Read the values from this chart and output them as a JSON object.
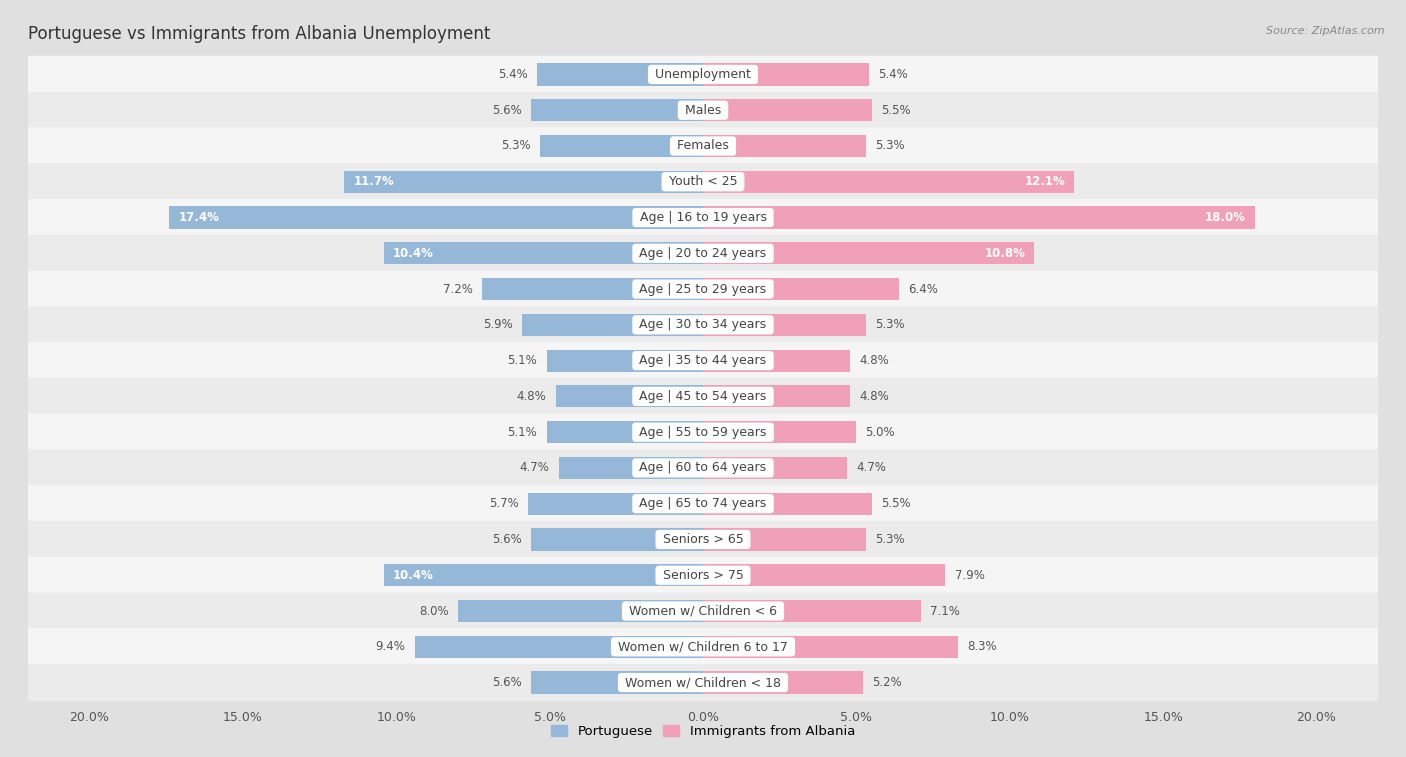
{
  "title": "Portuguese vs Immigrants from Albania Unemployment",
  "source": "Source: ZipAtlas.com",
  "categories": [
    "Unemployment",
    "Males",
    "Females",
    "Youth < 25",
    "Age | 16 to 19 years",
    "Age | 20 to 24 years",
    "Age | 25 to 29 years",
    "Age | 30 to 34 years",
    "Age | 35 to 44 years",
    "Age | 45 to 54 years",
    "Age | 55 to 59 years",
    "Age | 60 to 64 years",
    "Age | 65 to 74 years",
    "Seniors > 65",
    "Seniors > 75",
    "Women w/ Children < 6",
    "Women w/ Children 6 to 17",
    "Women w/ Children < 18"
  ],
  "portuguese": [
    5.4,
    5.6,
    5.3,
    11.7,
    17.4,
    10.4,
    7.2,
    5.9,
    5.1,
    4.8,
    5.1,
    4.7,
    5.7,
    5.6,
    10.4,
    8.0,
    9.4,
    5.6
  ],
  "albania": [
    5.4,
    5.5,
    5.3,
    12.1,
    18.0,
    10.8,
    6.4,
    5.3,
    4.8,
    4.8,
    5.0,
    4.7,
    5.5,
    5.3,
    7.9,
    7.1,
    8.3,
    5.2
  ],
  "portuguese_color": "#95b8d9",
  "albania_color": "#f0a0b8",
  "row_light": "#e8e8e8",
  "row_dark": "#d8d8d8",
  "background_color": "#e0e0e0",
  "xlim": 20.0,
  "bar_height": 0.62,
  "title_fontsize": 12,
  "label_fontsize": 9,
  "value_fontsize": 8.5,
  "axis_fontsize": 9
}
